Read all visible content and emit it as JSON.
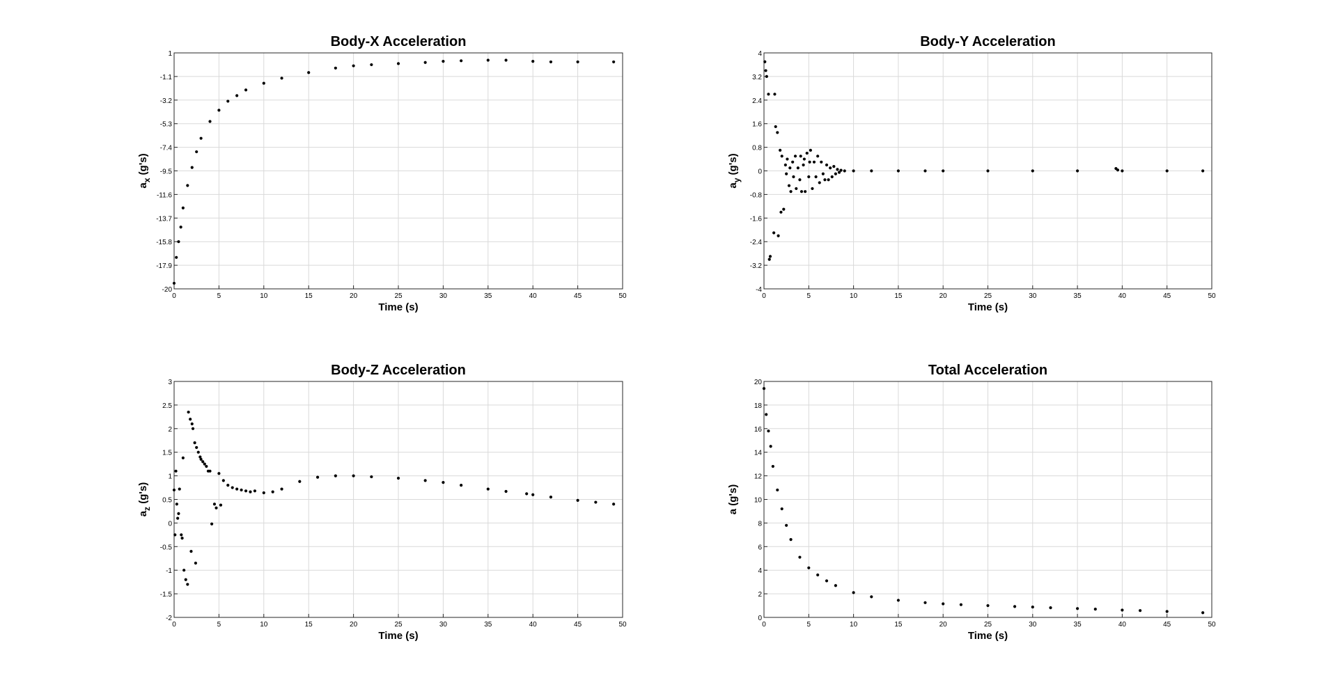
{
  "chart_data": [
    {
      "type": "scatter",
      "title": "Body-X Acceleration",
      "xlabel": "Time (s)",
      "ylabel_main": "a",
      "ylabel_sub": "x",
      "ylabel_unit": "(g's)",
      "xlim": [
        0,
        50
      ],
      "ylim": [
        -20,
        1
      ],
      "xticks": [
        "0",
        "5",
        "10",
        "15",
        "20",
        "25",
        "30",
        "35",
        "40",
        "45",
        "50"
      ],
      "yticks": [
        "1",
        "-1.1",
        "-3.2",
        "-5.3",
        "-7.4",
        "-9.5",
        "-11.6",
        "-13.7",
        "-15.8",
        "-17.9",
        "-20"
      ],
      "grid": true,
      "series": [
        {
          "x": [
            0,
            0.25,
            0.5,
            0.75,
            1,
            1.5,
            2,
            2.5,
            3,
            4,
            5,
            6,
            7,
            8,
            10,
            12,
            15,
            18,
            20,
            22,
            25,
            28,
            30,
            32,
            35,
            37,
            40,
            42,
            45,
            49
          ],
          "y": [
            -19.5,
            -17.2,
            -15.8,
            -14.5,
            -12.8,
            -10.8,
            -9.2,
            -7.8,
            -6.6,
            -5.1,
            -4.1,
            -3.3,
            -2.8,
            -2.3,
            -1.7,
            -1.25,
            -0.75,
            -0.35,
            -0.15,
            -0.05,
            0.05,
            0.15,
            0.25,
            0.3,
            0.35,
            0.35,
            0.25,
            0.2,
            0.2,
            0.2
          ]
        }
      ]
    },
    {
      "type": "scatter",
      "title": "Body-Y Acceleration",
      "xlabel": "Time (s)",
      "ylabel_main": "a",
      "ylabel_sub": "y",
      "ylabel_unit": "(g's)",
      "xlim": [
        0,
        50
      ],
      "ylim": [
        -4,
        4
      ],
      "xticks": [
        "0",
        "5",
        "10",
        "15",
        "20",
        "25",
        "30",
        "35",
        "40",
        "45",
        "50"
      ],
      "yticks": [
        "4",
        "3.2",
        "2.4",
        "1.6",
        "0.8",
        "0",
        "-0.8",
        "-1.6",
        "-2.4",
        "-3.2",
        "-4"
      ],
      "grid": true,
      "series": [
        {
          "x": [
            0.1,
            0.2,
            0.3,
            0.5,
            0.6,
            0.7,
            1.1,
            1.2,
            1.3,
            1.5,
            1.6,
            1.8,
            1.9,
            2.0,
            2.2,
            2.4,
            2.5,
            2.6,
            2.8,
            2.9,
            3.0,
            3.2,
            3.3,
            3.5,
            3.6,
            3.8,
            4.0,
            4.1,
            4.2,
            4.4,
            4.5,
            4.6,
            4.8,
            5.0,
            5.1,
            5.2,
            5.4,
            5.6,
            5.8,
            6.0,
            6.2,
            6.4,
            6.6,
            6.8,
            7.0,
            7.2,
            7.4,
            7.6,
            7.8,
            8.0,
            8.2,
            8.4,
            8.6,
            9.0,
            10,
            12,
            15,
            18,
            20,
            25,
            30,
            35,
            39.3,
            39.5,
            40,
            45,
            49
          ],
          "y": [
            3.7,
            3.4,
            3.2,
            2.6,
            -3.0,
            -2.9,
            -2.1,
            2.6,
            1.5,
            1.3,
            -2.2,
            0.7,
            -1.4,
            0.5,
            -1.3,
            0.2,
            -0.1,
            0.4,
            -0.5,
            0.1,
            -0.7,
            0.3,
            -0.2,
            0.5,
            -0.6,
            0.1,
            -0.3,
            0.5,
            -0.7,
            0.2,
            0.4,
            -0.7,
            0.6,
            -0.2,
            0.3,
            0.7,
            -0.6,
            0.3,
            -0.2,
            0.5,
            -0.4,
            0.3,
            -0.1,
            -0.3,
            0.2,
            -0.3,
            0.1,
            -0.2,
            0.15,
            -0.1,
            0.05,
            -0.05,
            0.02,
            0,
            0,
            0,
            0,
            0,
            0,
            0,
            0,
            0,
            0.08,
            0.03,
            0,
            0,
            0
          ]
        }
      ]
    },
    {
      "type": "scatter",
      "title": "Body-Z Acceleration",
      "xlabel": "Time (s)",
      "ylabel_main": "a",
      "ylabel_sub": "z",
      "ylabel_unit": "(g's)",
      "xlim": [
        0,
        50
      ],
      "ylim": [
        -2,
        3
      ],
      "xticks": [
        "0",
        "5",
        "10",
        "15",
        "20",
        "25",
        "30",
        "35",
        "40",
        "45",
        "50"
      ],
      "yticks": [
        "3",
        "2.5",
        "2",
        "1.5",
        "1",
        "0.5",
        "0",
        "-0.5",
        "-1",
        "-1.5",
        "-2"
      ],
      "grid": true,
      "series": [
        {
          "x": [
            0,
            0.1,
            0.2,
            0.3,
            0.4,
            0.5,
            0.6,
            0.8,
            0.9,
            1.0,
            1.1,
            1.3,
            1.5,
            1.6,
            1.8,
            1.9,
            2.0,
            2.1,
            2.3,
            2.4,
            2.5,
            2.7,
            2.9,
            3.0,
            3.2,
            3.4,
            3.6,
            3.8,
            4.0,
            4.2,
            4.5,
            4.7,
            5.0,
            5.2,
            5.5,
            6.0,
            6.5,
            7.0,
            7.5,
            8.0,
            8.5,
            9,
            10,
            11,
            12,
            14,
            16,
            18,
            20,
            22,
            25,
            28,
            30,
            32,
            35,
            37,
            39.3,
            40,
            42,
            45,
            47,
            49
          ],
          "y": [
            0.7,
            -0.25,
            1.1,
            0.4,
            0.1,
            0.2,
            0.72,
            -0.25,
            -0.32,
            1.38,
            -1.0,
            -1.2,
            -1.3,
            2.35,
            2.2,
            -0.6,
            2.1,
            2.0,
            1.7,
            -0.85,
            1.6,
            1.5,
            1.4,
            1.35,
            1.3,
            1.25,
            1.2,
            1.1,
            1.1,
            -0.02,
            0.4,
            0.32,
            1.05,
            0.38,
            0.9,
            0.8,
            0.75,
            0.72,
            0.7,
            0.68,
            0.66,
            0.68,
            0.64,
            0.66,
            0.72,
            0.88,
            0.97,
            1.0,
            1.0,
            0.98,
            0.95,
            0.9,
            0.86,
            0.8,
            0.72,
            0.67,
            0.62,
            0.6,
            0.55,
            0.48,
            0.44,
            0.4
          ]
        }
      ]
    },
    {
      "type": "scatter",
      "title": "Total Acceleration",
      "xlabel": "Time (s)",
      "ylabel_main": "a",
      "ylabel_sub": "",
      "ylabel_unit": "(g's)",
      "xlim": [
        0,
        50
      ],
      "ylim": [
        0,
        20
      ],
      "xticks": [
        "0",
        "5",
        "10",
        "15",
        "20",
        "25",
        "30",
        "35",
        "40",
        "45",
        "50"
      ],
      "yticks": [
        "20",
        "18",
        "16",
        "14",
        "12",
        "10",
        "8",
        "6",
        "4",
        "2",
        "0"
      ],
      "grid": true,
      "series": [
        {
          "x": [
            0,
            0.25,
            0.5,
            0.75,
            1,
            1.5,
            2,
            2.5,
            3,
            4,
            5,
            6,
            7,
            8,
            10,
            12,
            15,
            18,
            20,
            22,
            25,
            28,
            30,
            32,
            35,
            37,
            40,
            42,
            45,
            49
          ],
          "y": [
            19.4,
            17.2,
            15.8,
            14.5,
            12.8,
            10.8,
            9.2,
            7.8,
            6.6,
            5.1,
            4.2,
            3.6,
            3.1,
            2.7,
            2.1,
            1.75,
            1.45,
            1.25,
            1.15,
            1.08,
            1.0,
            0.92,
            0.88,
            0.82,
            0.75,
            0.7,
            0.62,
            0.58,
            0.5,
            0.4
          ]
        }
      ]
    }
  ]
}
